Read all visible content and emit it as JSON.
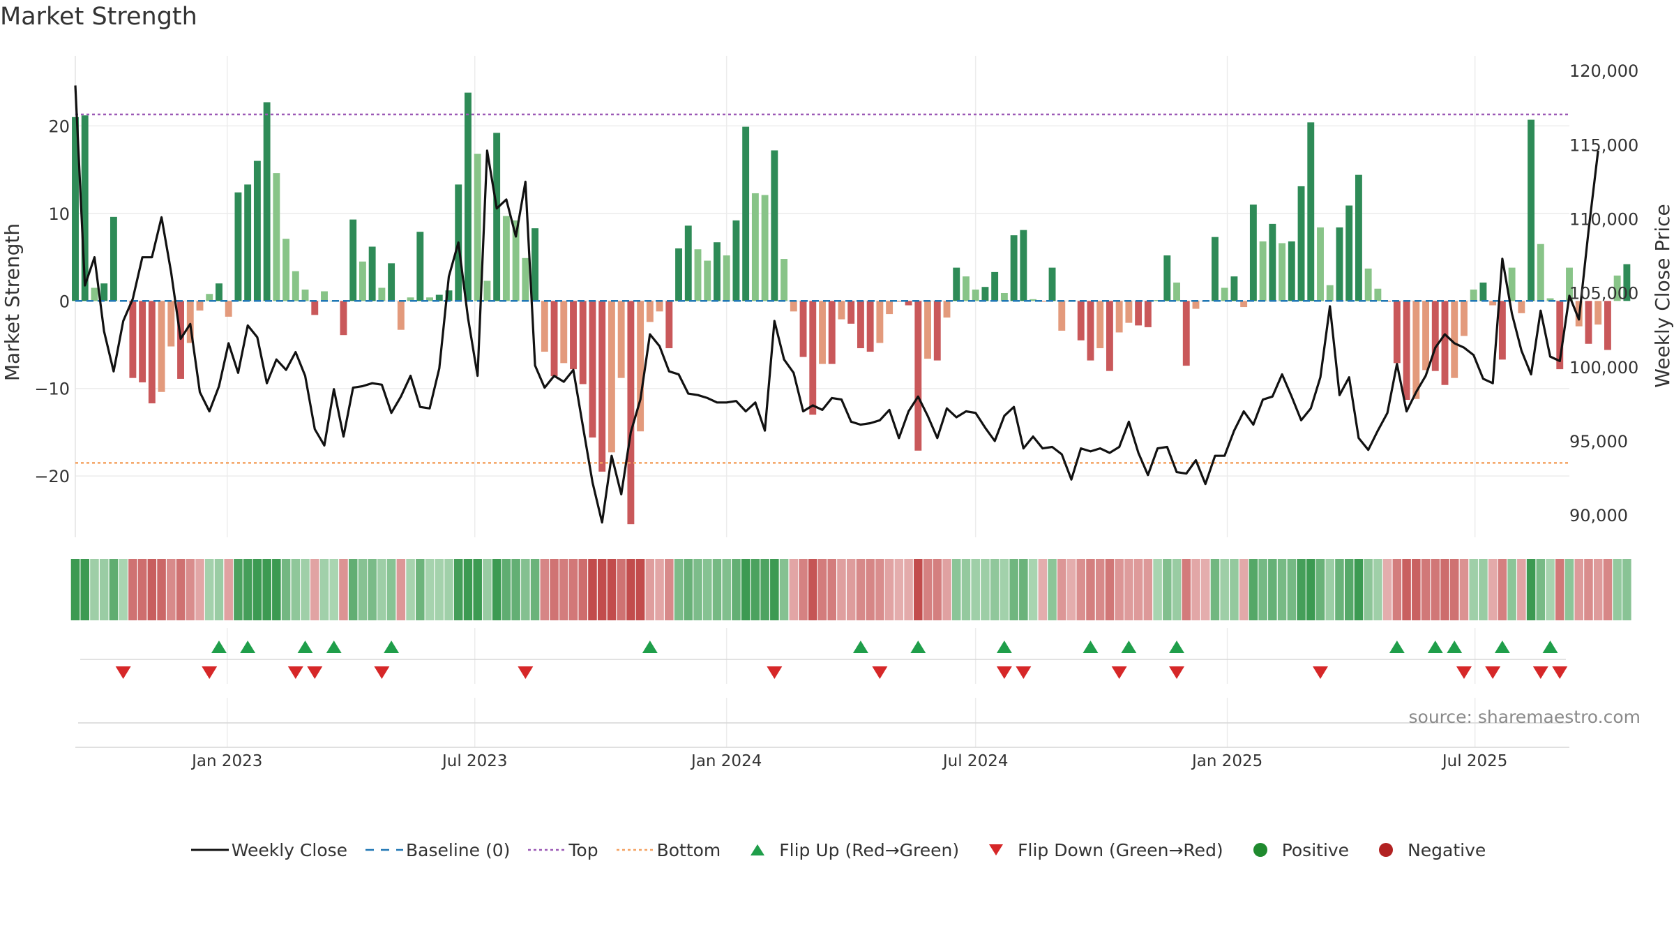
{
  "title": "Market Strength",
  "chart_data": {
    "type": "bar",
    "title": "Market Strength",
    "source_label": "source: sharemaestro.com",
    "left_axis": {
      "label": "Market Strength",
      "range": [
        -27,
        28
      ],
      "ticks": [
        -20,
        -10,
        0,
        10,
        20
      ],
      "tick_labels": [
        "−20",
        "−10",
        "0",
        "10",
        "20"
      ]
    },
    "right_axis": {
      "label": "Weekly Close Price",
      "range": [
        88500,
        121000
      ],
      "ticks": [
        90000,
        95000,
        100000,
        105000,
        110000,
        115000,
        120000
      ],
      "tick_labels": [
        "90,000",
        "95,000",
        "100,000",
        "105,000",
        "110,000",
        "115,000",
        "120,000"
      ]
    },
    "top_line": 21.3,
    "bottom_line": -18.5,
    "time_range": [
      "2022-09-12",
      "2025-09-08"
    ],
    "x_ticks": [
      {
        "date": "2023-01-01",
        "label": "Jan 2023"
      },
      {
        "date": "2023-07-01",
        "label": "Jul 2023"
      },
      {
        "date": "2024-01-01",
        "label": "Jan 2024"
      },
      {
        "date": "2024-07-01",
        "label": "Jul 2024"
      },
      {
        "date": "2025-01-01",
        "label": "Jan 2025"
      },
      {
        "date": "2025-07-01",
        "label": "Jul 2025"
      }
    ],
    "series": [
      {
        "name": "Market Strength",
        "start": "2022-09-12",
        "values": [
          21,
          21.2,
          1.5,
          2,
          9.6,
          0,
          -8.8,
          -9.3,
          -11.7,
          -10.4,
          -5.2,
          -8.9,
          -4.8,
          -1.1,
          0.8,
          2,
          -1.8,
          12.4,
          13.3,
          16,
          22.7,
          14.6,
          7.1,
          3.4,
          1.3,
          -1.6,
          1.1,
          0,
          -3.9,
          9.3,
          4.5,
          6.2,
          1.5,
          4.3,
          -3.3,
          0.4,
          7.9,
          0.4,
          0.7,
          1.2,
          13.3,
          23.8,
          16.8,
          2.3,
          19.2,
          9.7,
          9.2,
          4.9,
          8.3,
          -5.8,
          -8.6,
          -7.1,
          -7.8,
          -9.5,
          -15.6,
          -19.5,
          -17.3,
          -8.8,
          -25.5,
          -14.9,
          -2.4,
          -1.2,
          -5.4,
          6,
          8.6,
          5.9,
          4.6,
          6.7,
          5.2,
          9.2,
          19.9,
          12.3,
          12.1,
          17.2,
          4.8,
          -1.2,
          -6.4,
          -13,
          -7.2,
          -7.2,
          -2.1,
          -2.6,
          -5.4,
          -5.8,
          -4.8,
          -1.5,
          -0.1,
          -0.5,
          -17.1,
          -6.6,
          -6.8,
          -1.9,
          3.8,
          2.8,
          1.3,
          1.6,
          3.3,
          0.9,
          7.5,
          8.1,
          0.2,
          -0.1,
          3.8,
          -3.4,
          -0.1,
          -4.5,
          -6.8,
          -5.4,
          -8,
          -3.6,
          -2.5,
          -2.8,
          -3,
          0.1,
          5.2,
          2.1,
          -7.4,
          -0.9,
          -0.1,
          7.3,
          1.5,
          2.8,
          -0.7,
          11,
          6.8,
          8.8,
          6.6,
          6.8,
          13.1,
          20.4,
          8.4,
          1.8,
          8.4,
          10.9,
          14.4,
          3.7,
          1.4,
          -0.1,
          -7.1,
          -11.3,
          -11.2,
          -7.9,
          -8,
          -9.6,
          -8.8,
          -4,
          1.3,
          2.1,
          -0.5,
          -6.7,
          3.8,
          -1.4,
          20.7,
          6.5,
          0.3,
          -7.8,
          3.8,
          -2.9,
          -4.9,
          -2.7,
          -5.6,
          2.9,
          4.2
        ]
      },
      {
        "name": "Weekly Close",
        "start": "2022-09-12",
        "values": [
          119,
          105.5,
          107.4,
          102.4,
          99.7,
          103.1,
          104.6,
          107.4,
          107.4,
          110.1,
          106.4,
          101.9,
          102.9,
          98.3,
          97,
          98.7,
          101.6,
          99.6,
          102.8,
          102,
          98.9,
          100.5,
          99.8,
          101,
          99.4,
          95.8,
          94.7,
          98.5,
          95.3,
          98.6,
          98.7,
          98.9,
          98.8,
          96.9,
          98,
          99.4,
          97.3,
          97.2,
          99.9,
          106.1,
          108.4,
          103.3,
          99.4,
          114.6,
          110.7,
          111.3,
          108.8,
          112.5,
          100.1,
          98.6,
          99.4,
          99,
          99.8,
          96,
          92.2,
          89.5,
          94,
          91.4,
          95.6,
          97.8,
          102.2,
          101.4,
          99.7,
          99.5,
          98.2,
          98.1,
          97.9,
          97.6,
          97.6,
          97.7,
          97,
          97.6,
          95.7,
          103.1,
          100.5,
          99.6,
          97,
          97.4,
          97.1,
          97.9,
          97.8,
          96.3,
          96.1,
          96.2,
          96.4,
          97.1,
          95.2,
          97,
          98,
          96.7,
          95.2,
          97.2,
          96.6,
          97,
          96.9,
          95.9,
          95,
          96.7,
          97.3,
          94.5,
          95.3,
          94.5,
          94.6,
          94.1,
          92.4,
          94.5,
          94.3,
          94.5,
          94.2,
          94.6,
          96.3,
          94.2,
          92.7,
          94.5,
          94.6,
          92.9,
          92.8,
          93.7,
          92.1,
          94,
          94,
          95.7,
          97,
          96.1,
          97.8,
          98,
          99.5,
          98,
          96.4,
          97.2,
          99.3,
          104.1,
          98.1,
          99.3,
          95.2,
          94.4,
          95.7,
          96.9,
          100.2,
          97,
          98.3,
          99.4,
          101.3,
          102.2,
          101.6,
          101.3,
          100.8,
          99.2,
          98.9,
          107.3,
          103.6,
          101.1,
          99.5,
          103.8,
          100.7,
          100.4,
          104.8,
          103.2,
          109.2,
          114.6
        ]
      }
    ],
    "cell_colors": {
      "strong_pos": "#2e8b57",
      "mild_pos": "#88c488",
      "strong_neg": "#c9585a",
      "mild_neg": "#e39a7c"
    },
    "colors": {
      "weekly_close": "#111111",
      "baseline": "#1f77b4",
      "top": "#9b59b6",
      "bottom": "#f4a261",
      "flip_up": "#1f9e4a",
      "flip_down": "#d62728",
      "positive": "#1f8a2e",
      "negative": "#b22222"
    },
    "flip_up_weeks": [
      15,
      18,
      24,
      27,
      33,
      60,
      82,
      88,
      97,
      106,
      110,
      115,
      138,
      142,
      144,
      149,
      154
    ],
    "flip_down_weeks": [
      5,
      14,
      23,
      25,
      32,
      47,
      73,
      84,
      97,
      99,
      109,
      115,
      130,
      145,
      148,
      153,
      155
    ],
    "legend": [
      {
        "label": "Weekly Close",
        "symbol": "line"
      },
      {
        "label": "Baseline (0)",
        "symbol": "dash"
      },
      {
        "label": "Top",
        "symbol": "dotted-purple"
      },
      {
        "label": "Bottom",
        "symbol": "dotted-orange"
      },
      {
        "label": "Flip Up (Red→Green)",
        "symbol": "triangle-up"
      },
      {
        "label": "Flip Down (Green→Red)",
        "symbol": "triangle-down"
      },
      {
        "label": "Positive",
        "symbol": "dot-green"
      },
      {
        "label": "Negative",
        "symbol": "dot-red"
      }
    ]
  }
}
